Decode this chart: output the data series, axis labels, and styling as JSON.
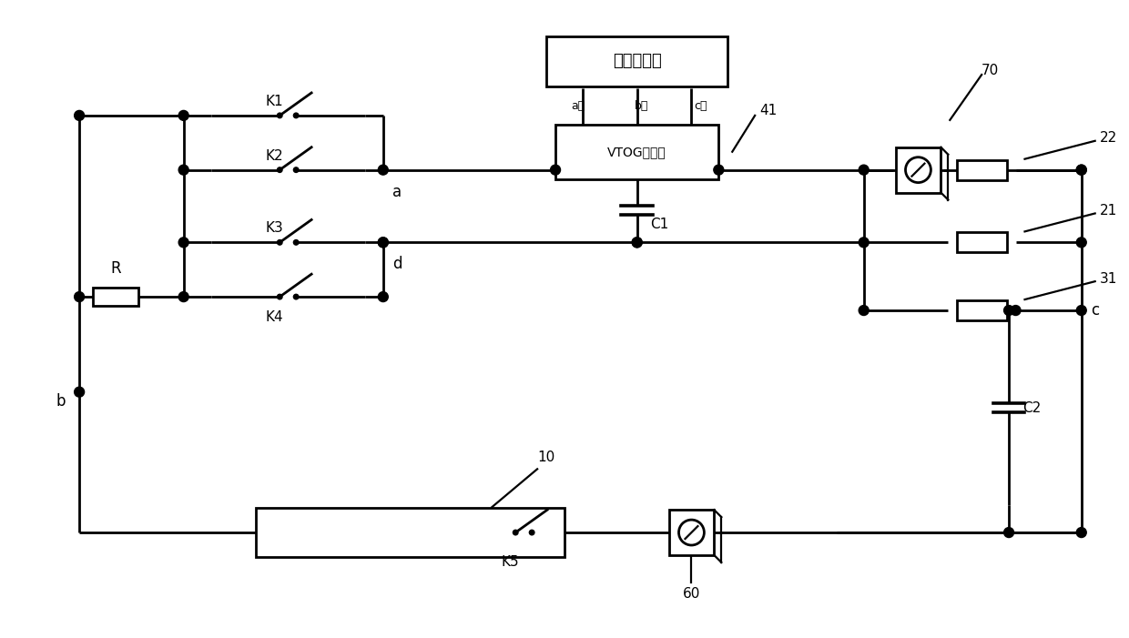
{
  "background_color": "#ffffff",
  "line_color": "#000000",
  "lw": 2.0,
  "labels": {
    "AC_charger": "交流充电柜",
    "VTOG": "VTOG控制器",
    "phase_a": "a相",
    "phase_b": "b相",
    "phase_c": "c相",
    "K1": "K1",
    "K2": "K2",
    "K3": "K3",
    "K4": "K4",
    "K5": "K5",
    "R": "R",
    "C1": "C1",
    "C2": "C2",
    "na": "a",
    "nb": "b",
    "nc": "c",
    "nd": "d",
    "n10": "10",
    "n21": "21",
    "n22": "22",
    "n31": "31",
    "n41": "41",
    "n60": "60",
    "n70": "70"
  }
}
